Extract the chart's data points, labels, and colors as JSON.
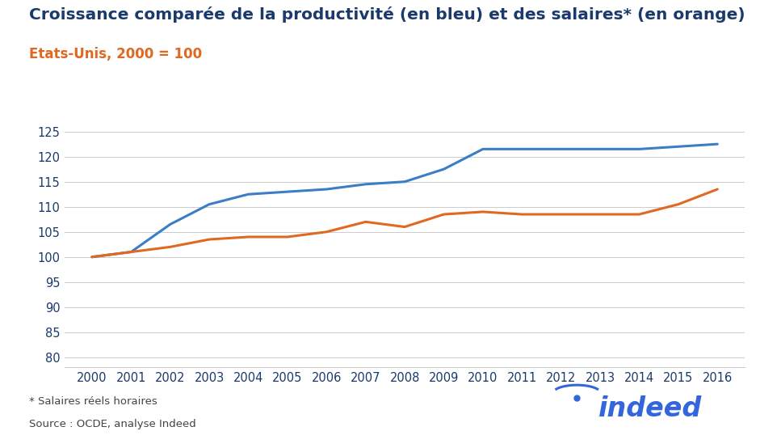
{
  "title": "Croissance comparée de la productivité (en bleu) et des salaires* (en orange)",
  "subtitle": "Etats-Unis, 2000 = 100",
  "footnote1": "* Salaires réels horaires",
  "footnote2": "Source : OCDE, analyse Indeed",
  "years": [
    2000,
    2001,
    2002,
    2003,
    2004,
    2005,
    2006,
    2007,
    2008,
    2009,
    2010,
    2011,
    2012,
    2013,
    2014,
    2015,
    2016
  ],
  "productivity": [
    100,
    101,
    106.5,
    110.5,
    112.5,
    113.0,
    113.5,
    114.5,
    115.0,
    117.5,
    121.5,
    121.5,
    121.5,
    121.5,
    121.5,
    122.0,
    122.5
  ],
  "wages": [
    100,
    101,
    102,
    103.5,
    104,
    104,
    105,
    107,
    106,
    108.5,
    109,
    108.5,
    108.5,
    108.5,
    108.5,
    110.5,
    113.5
  ],
  "blue_color": "#3a7ec8",
  "orange_color": "#e06820",
  "title_color": "#1a3a6b",
  "subtitle_color": "#e06820",
  "footnote_color": "#444444",
  "indeed_color": "#3366dd",
  "background_color": "#ffffff",
  "ylim": [
    78,
    128
  ],
  "yticks": [
    80,
    85,
    90,
    95,
    100,
    105,
    110,
    115,
    120,
    125
  ],
  "grid_color": "#cccccc",
  "line_width": 2.2,
  "title_fontsize": 14.5,
  "subtitle_fontsize": 12,
  "tick_fontsize": 10.5,
  "footnote_fontsize": 9.5
}
